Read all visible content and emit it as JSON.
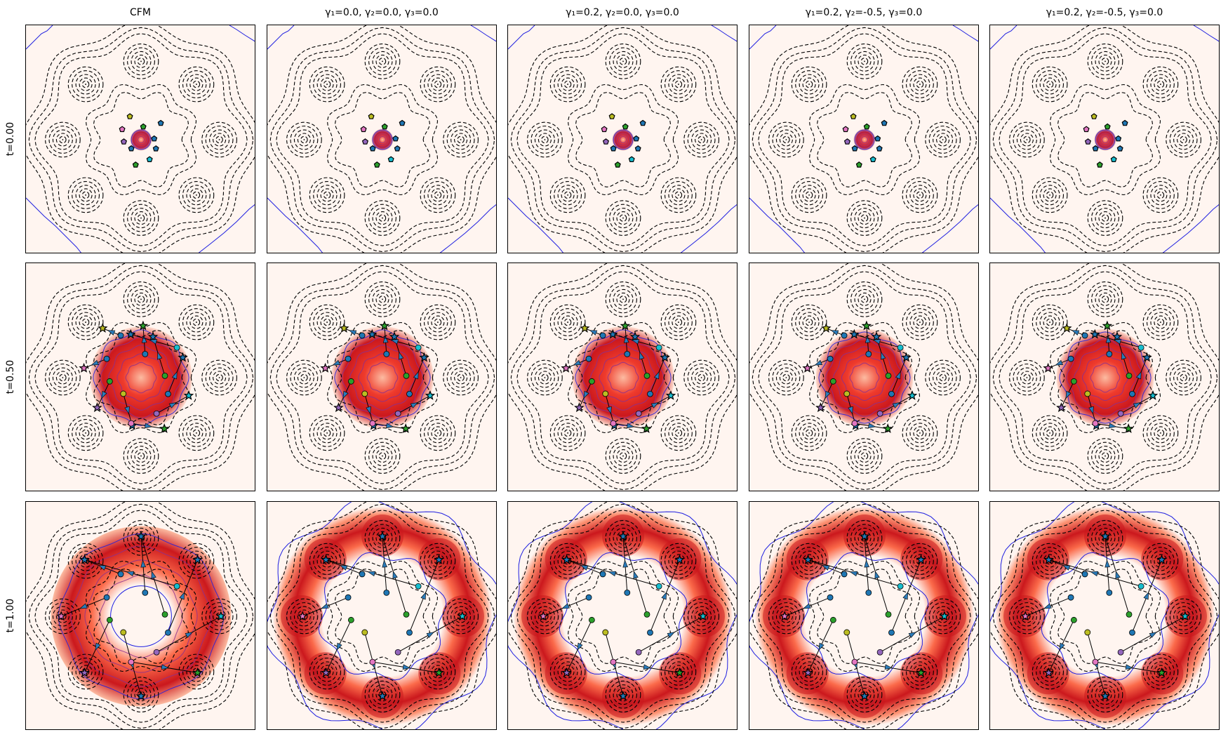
{
  "chart_data": {
    "type": "heatmap",
    "layout": "grid 3 rows x 5 columns",
    "column_titles": [
      "CFM",
      "γ₁=0.0, γ₂=0.0, γ₃=0.0",
      "γ₁=0.2, γ₂=0.0, γ₃=0.0",
      "γ₁=0.2, γ₂=-0.5, γ₃=0.0",
      "γ₁=0.2, γ₂=-0.5, γ₃=0.0"
    ],
    "row_labels": [
      "t=0.00",
      "t=0.50",
      "t=1.00"
    ],
    "target_modes": 8,
    "target_contour_style": "black dashed",
    "density_contour_color": "#1f1fe0",
    "density_colormap": [
      "#fff5f0",
      "#fcbba1",
      "#fb6a4a",
      "#cb181d",
      "#67000d"
    ],
    "axes_ticks": false,
    "panels": [
      {
        "column": 0,
        "row": 0,
        "density_radius": 0.09,
        "ring": false
      },
      {
        "column": 1,
        "row": 0,
        "density_radius": 0.09,
        "ring": false
      },
      {
        "column": 2,
        "row": 0,
        "density_radius": 0.09,
        "ring": false
      },
      {
        "column": 3,
        "row": 0,
        "density_radius": 0.09,
        "ring": false
      },
      {
        "column": 4,
        "row": 0,
        "density_radius": 0.09,
        "ring": false
      },
      {
        "column": 0,
        "row": 1,
        "density_radius": 0.42,
        "ring": false
      },
      {
        "column": 1,
        "row": 1,
        "density_radius": 0.42,
        "ring": false
      },
      {
        "column": 2,
        "row": 1,
        "density_radius": 0.42,
        "ring": false
      },
      {
        "column": 3,
        "row": 1,
        "density_radius": 0.4,
        "ring": false
      },
      {
        "column": 4,
        "row": 1,
        "density_radius": 0.4,
        "ring": false
      },
      {
        "column": 0,
        "row": 2,
        "density_radius": 0.74,
        "ring": false
      },
      {
        "column": 1,
        "row": 2,
        "density_radius": 0.9,
        "ring": true
      },
      {
        "column": 2,
        "row": 2,
        "density_radius": 0.9,
        "ring": true
      },
      {
        "column": 3,
        "row": 2,
        "density_radius": 0.9,
        "ring": true
      },
      {
        "column": 4,
        "row": 2,
        "density_radius": 0.9,
        "ring": true
      }
    ]
  }
}
